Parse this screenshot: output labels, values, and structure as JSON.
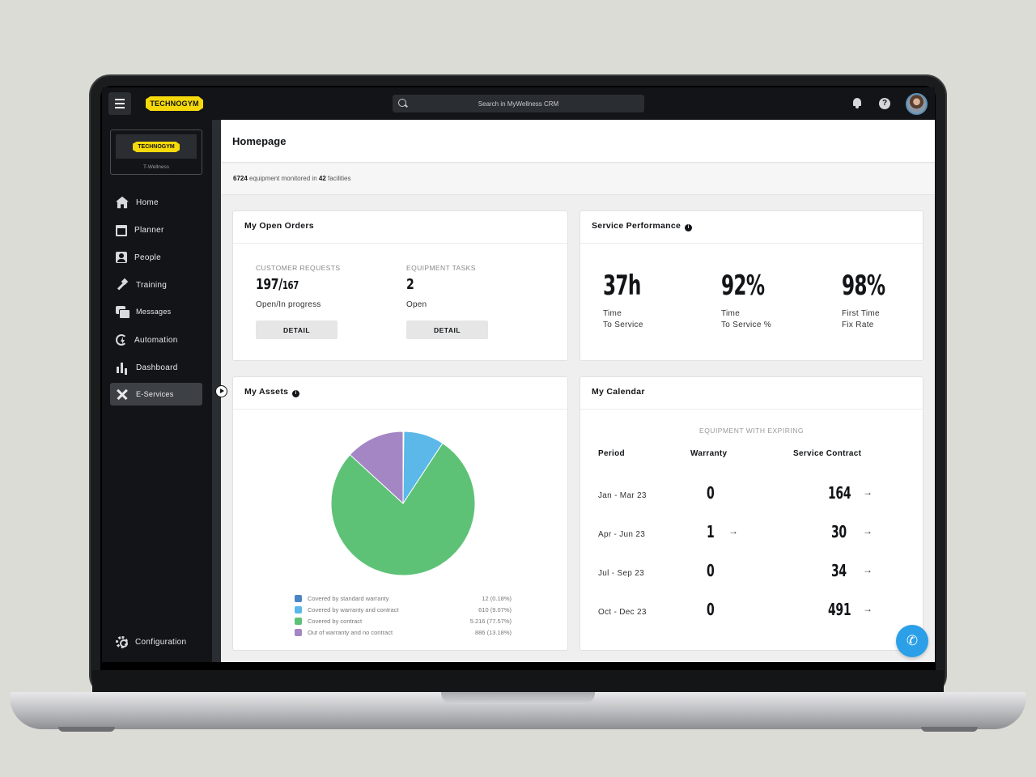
{
  "header": {
    "logo_text": "TECHNOGYM",
    "search_placeholder": "Search in MyWellness CRM",
    "help_glyph": "?",
    "icons": [
      "menu-icon",
      "search-icon",
      "bell-icon",
      "help-icon",
      "avatar"
    ]
  },
  "sidebar": {
    "org_logo_text": "TECHNOGYM",
    "org_name": "T-Wellness",
    "items": [
      {
        "label": "Home",
        "icon": "home-icon"
      },
      {
        "label": "Planner",
        "icon": "calendar-icon"
      },
      {
        "label": "People",
        "icon": "people-icon"
      },
      {
        "label": "Training",
        "icon": "dumbbell-icon"
      },
      {
        "label": "Messages",
        "icon": "messages-icon"
      },
      {
        "label": "Automation",
        "icon": "automation-icon"
      },
      {
        "label": "Dashboard",
        "icon": "bar-chart-icon"
      },
      {
        "label": "E-Services",
        "icon": "tools-icon",
        "active": true
      }
    ],
    "config_label": "Configuration"
  },
  "page": {
    "title": "Homepage",
    "equipment_count": "6724",
    "equipment_text": "equipment monitored in",
    "facility_count": "42",
    "facility_text": "facilities"
  },
  "orders": {
    "title": "My Open Orders",
    "customer_label": "CUSTOMER REQUESTS",
    "customer_value_main": "197/",
    "customer_value_small": "167",
    "customer_sub": "Open/In progress",
    "equipment_label": "EQUIPMENT TASKS",
    "equipment_value": "2",
    "equipment_sub": "Open",
    "detail_label": "DETAIL"
  },
  "performance": {
    "title": "Service Performance",
    "info_glyph": "i",
    "metrics": [
      {
        "value": "37h",
        "line1": "Time",
        "line2": "To Service"
      },
      {
        "value": "92%",
        "line1": "Time",
        "line2": "To Service %"
      },
      {
        "value": "98%",
        "line1": "First Time",
        "line2": "Fix Rate"
      }
    ]
  },
  "assets": {
    "title": "My Assets",
    "info_glyph": "i",
    "slices": [
      {
        "label": "Covered by standard warranty",
        "value_text": "12 (0.18%)",
        "share": 0.18,
        "color": "#4a86c5"
      },
      {
        "label": "Covered by warranty and contract",
        "value_text": "610 (9.07%)",
        "share": 9.07,
        "color": "#5bb8e8"
      },
      {
        "label": "Covered by contract",
        "value_text": "5.216 (77.57%)",
        "share": 77.57,
        "color": "#5ec276"
      },
      {
        "label": "Out of warranty and no contract",
        "value_text": "886 (13.18%)",
        "share": 13.18,
        "color": "#a486c4"
      }
    ]
  },
  "calendar": {
    "title": "My Calendar",
    "subtitle": "EQUIPMENT WITH EXPIRING",
    "col_period": "Period",
    "col_warranty": "Warranty",
    "col_contract": "Service Contract",
    "arrow_glyph": "→",
    "rows": [
      {
        "period": "Jan - Mar 23",
        "warranty": "0",
        "warranty_arrow": false,
        "contract": "164"
      },
      {
        "period": "Apr - Jun 23",
        "warranty": "1",
        "warranty_arrow": true,
        "contract": "30"
      },
      {
        "period": "Jul - Sep 23",
        "warranty": "0",
        "warranty_arrow": false,
        "contract": "34"
      },
      {
        "period": "Oct - Dec 23",
        "warranty": "0",
        "warranty_arrow": false,
        "contract": "491"
      }
    ]
  },
  "fab": {
    "glyph": "✆",
    "icon": "phone-icon"
  }
}
